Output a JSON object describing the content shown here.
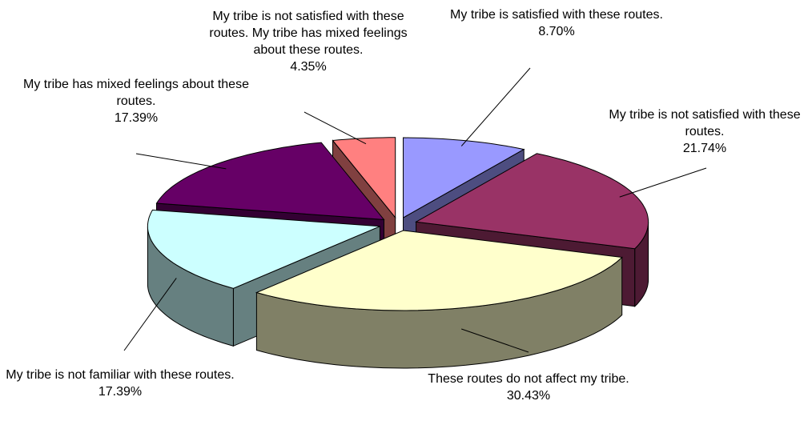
{
  "chart_data": {
    "type": "pie",
    "categories": [
      "My tribe is satisfied with these routes.",
      "My tribe is not satisfied with these routes.",
      "These routes do not affect my tribe.",
      "My tribe is not familiar with these routes.",
      "My tribe has mixed feelings about these routes.",
      "My tribe is not satisfied with these routes.  My tribe has mixed feelings about these routes."
    ],
    "values": [
      8.7,
      21.74,
      30.43,
      17.39,
      17.39,
      4.35
    ],
    "value_labels": [
      "8.70%",
      "21.74%",
      "30.43%",
      "17.39%",
      "17.39%",
      "4.35%"
    ],
    "colors": [
      "#9999ff",
      "#993366",
      "#ffffcc",
      "#ccffff",
      "#660066",
      "#ff8080"
    ],
    "exploded": true,
    "three_d": true
  }
}
